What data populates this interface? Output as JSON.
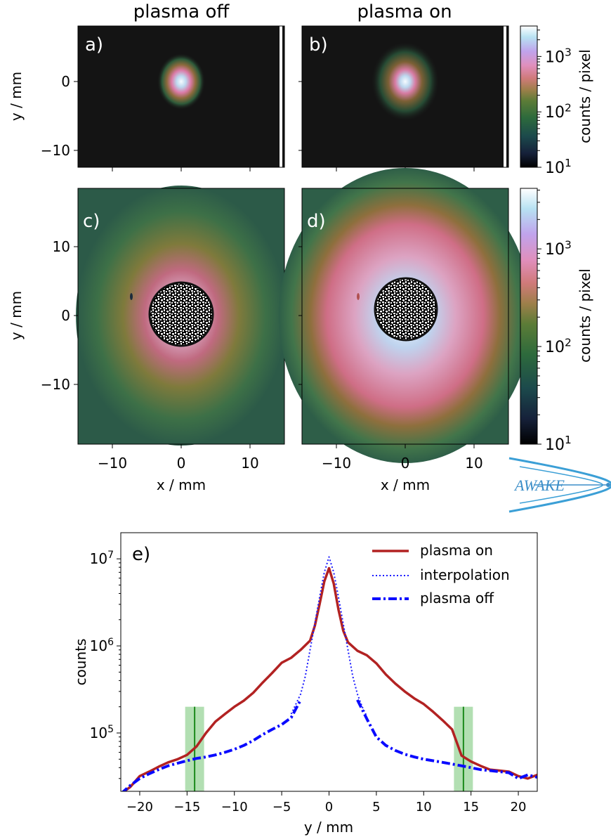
{
  "panel_a": {
    "label": "a)",
    "title": "plasma off"
  },
  "panel_b": {
    "label": "b)",
    "title": "plasma on"
  },
  "panel_c": {
    "label": "c)"
  },
  "panel_d": {
    "label": "d)"
  },
  "top_row": {
    "ylabel": "y / mm",
    "yticks": [
      {
        "v": 0,
        "t": "0"
      },
      {
        "v": -10,
        "t": "−10"
      }
    ]
  },
  "mid_row": {
    "ylabel": "y / mm",
    "xlabel": "x / mm",
    "yticks": [
      {
        "v": 10,
        "t": "10"
      },
      {
        "v": 0,
        "t": "0"
      },
      {
        "v": -10,
        "t": "−10"
      }
    ],
    "xticks": [
      {
        "v": -10,
        "t": "−10"
      },
      {
        "v": 0,
        "t": "0"
      },
      {
        "v": 10,
        "t": "10"
      }
    ]
  },
  "colorbar_top": {
    "label": "counts / pixel",
    "ticks": [
      {
        "e": 1,
        "t": "10"
      },
      {
        "e": 2,
        "t": "10"
      },
      {
        "e": 3,
        "t": "10"
      }
    ]
  },
  "colorbar_mid": {
    "label": "counts / pixel",
    "ticks": [
      {
        "e": 1,
        "t": "10"
      },
      {
        "e": 2,
        "t": "10"
      },
      {
        "e": 3,
        "t": "10"
      }
    ]
  },
  "logo": {
    "text": "AWAKE",
    "color": "#3b8ec8"
  },
  "colors": {
    "plasma_on": "#b22222",
    "plasma_off": "#0a0aff",
    "interpolation": "#1a1aff",
    "band": "#7fc97f",
    "band_line": "#1b8a1b"
  },
  "chart_data": {
    "type": "line",
    "title": "",
    "panel_label": "e)",
    "xlabel": "y / mm",
    "ylabel": "counts",
    "xlim": [
      -22,
      22
    ],
    "ylim_log10": [
      4.33,
      7.3
    ],
    "log_y": true,
    "xticks": [
      {
        "v": -20,
        "t": "−20"
      },
      {
        "v": -15,
        "t": "−15"
      },
      {
        "v": -10,
        "t": "−10"
      },
      {
        "v": -5,
        "t": "−5"
      },
      {
        "v": 0,
        "t": "0"
      },
      {
        "v": 5,
        "t": "5"
      },
      {
        "v": 10,
        "t": "10"
      },
      {
        "v": 15,
        "t": "15"
      },
      {
        "v": 20,
        "t": "20"
      }
    ],
    "yticks": [
      {
        "e": 5,
        "t": "10"
      },
      {
        "e": 6,
        "t": "10"
      },
      {
        "e": 7,
        "t": "10"
      }
    ],
    "legend_position": "top-right",
    "series": [
      {
        "name": "plasma on",
        "style": "solid",
        "x": [
          -22,
          -21,
          -20,
          -19,
          -18,
          -17,
          -16,
          -15,
          -14,
          -13,
          -12,
          -11,
          -10,
          -9,
          -8,
          -7,
          -6,
          -5,
          -4,
          -3,
          -2,
          -1.5,
          -1,
          -0.5,
          0,
          0.5,
          1,
          1.5,
          2,
          3,
          4,
          5,
          6,
          7,
          8,
          9,
          10,
          11,
          12,
          13,
          14,
          15,
          16,
          17,
          18,
          19,
          20,
          21,
          22
        ],
        "y": [
          20000,
          24000,
          32000,
          36000,
          41000,
          46000,
          50000,
          56000,
          70000,
          100000,
          135000,
          165000,
          200000,
          235000,
          290000,
          380000,
          490000,
          640000,
          730000,
          900000,
          1150000,
          1700000,
          3000000,
          5500000,
          7800000,
          5200000,
          2600000,
          1500000,
          1100000,
          880000,
          780000,
          630000,
          470000,
          370000,
          300000,
          250000,
          215000,
          175000,
          140000,
          110000,
          55000,
          47000,
          42000,
          38000,
          37000,
          36000,
          32000,
          30000,
          33000
        ]
      },
      {
        "name": "interpolation",
        "style": "dotted",
        "x": [
          -4,
          -3,
          -2.5,
          -2,
          -1.5,
          -1,
          -0.5,
          0,
          0.5,
          1,
          1.5,
          2,
          2.5,
          3,
          3.5,
          4
        ],
        "y": [
          165000,
          280000,
          450000,
          900000,
          1800000,
          3600000,
          7000000,
          10500000,
          7000000,
          3600000,
          1800000,
          900000,
          450000,
          280000,
          200000,
          155000
        ]
      },
      {
        "name": "plasma off",
        "style": "dashdot",
        "x": [
          -22,
          -21,
          -20,
          -19,
          -18,
          -17,
          -16,
          -15,
          -14,
          -13,
          -12,
          -11,
          -10,
          -9,
          -8,
          -7,
          -6,
          -5,
          -4,
          -3,
          3,
          4,
          5,
          6,
          7,
          8,
          9,
          10,
          11,
          12,
          13,
          14,
          15,
          16,
          17,
          18,
          19,
          20,
          21,
          22
        ],
        "y": [
          20000,
          25000,
          30000,
          34000,
          38000,
          42000,
          45000,
          48000,
          51000,
          53000,
          56000,
          60000,
          65000,
          72000,
          82000,
          96000,
          110000,
          125000,
          150000,
          240000,
          240000,
          145000,
          90000,
          72000,
          63000,
          57000,
          53000,
          50000,
          48000,
          46000,
          44000,
          42000,
          40000,
          38000,
          37000,
          36000,
          35000,
          30000,
          33000,
          31000
        ]
      }
    ],
    "bands": [
      {
        "center": -14.2,
        "half_width": 1.0,
        "top": 200000
      },
      {
        "center": 14.2,
        "half_width": 1.0,
        "top": 200000
      }
    ]
  }
}
